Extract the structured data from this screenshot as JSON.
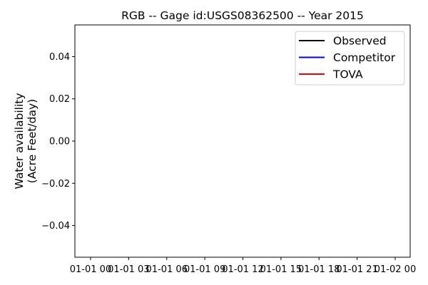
{
  "chart_data": {
    "type": "line",
    "title": "RGB -- Gage id:USGS08362500 -- Year 2015",
    "ylabel_lines": [
      "Water availability",
      "(Acre Feet/day)"
    ],
    "xlabel": "",
    "x_tick_labels": [
      "01-01 00",
      "01-01 03",
      "01-01 06",
      "01-01 09",
      "01-01 12",
      "01-01 15",
      "01-01 18",
      "01-01 21",
      "01-02 00"
    ],
    "y_ticks": [
      0.04,
      0.02,
      0.0,
      -0.02,
      -0.04
    ],
    "y_tick_labels": [
      "0.04",
      "0.02",
      "0.00",
      "−0.02",
      "−0.04"
    ],
    "ylim": [
      -0.055,
      0.055
    ],
    "legend_position": "upper right",
    "series": [
      {
        "name": "Observed",
        "color": "#000000",
        "x": [],
        "y": []
      },
      {
        "name": "Competitor",
        "color": "#0000ff",
        "x": [],
        "y": []
      },
      {
        "name": "TOVA",
        "color": "#ff0000",
        "x": [],
        "y": []
      }
    ]
  }
}
